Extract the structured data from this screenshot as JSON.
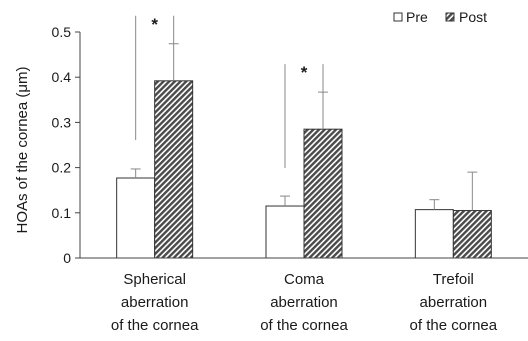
{
  "chart_data": {
    "type": "bar",
    "ylabel": "HOAs of the cornea (μm)",
    "ylim": [
      0,
      0.5
    ],
    "yticks": [
      0,
      0.1,
      0.2,
      0.3,
      0.4,
      0.5
    ],
    "ytick_labels": [
      "0",
      "0.1",
      "0.2",
      "0.3",
      "0.4",
      "0.5"
    ],
    "categories": [
      [
        "Spherical",
        "aberration",
        "of the cornea"
      ],
      [
        "Coma",
        "aberration",
        "of the cornea"
      ],
      [
        "Trefoil",
        "aberration",
        "of the cornea"
      ]
    ],
    "series": [
      {
        "name": "Pre",
        "values": [
          0.177,
          0.115,
          0.107
        ],
        "errors": [
          0.02,
          0.022,
          0.022
        ]
      },
      {
        "name": "Post",
        "values": [
          0.392,
          0.285,
          0.105
        ],
        "errors": [
          0.082,
          0.082,
          0.085
        ]
      }
    ],
    "significance": [
      {
        "category": 0,
        "label": "*"
      },
      {
        "category": 1,
        "label": "*"
      }
    ],
    "legend_position": "top-right",
    "grid": false
  },
  "colors": {
    "pre_fill": "#ffffff",
    "post_fill": "#4a4a4a",
    "stroke": "#333333",
    "axis": "#444444",
    "error_bar": "#888888"
  }
}
